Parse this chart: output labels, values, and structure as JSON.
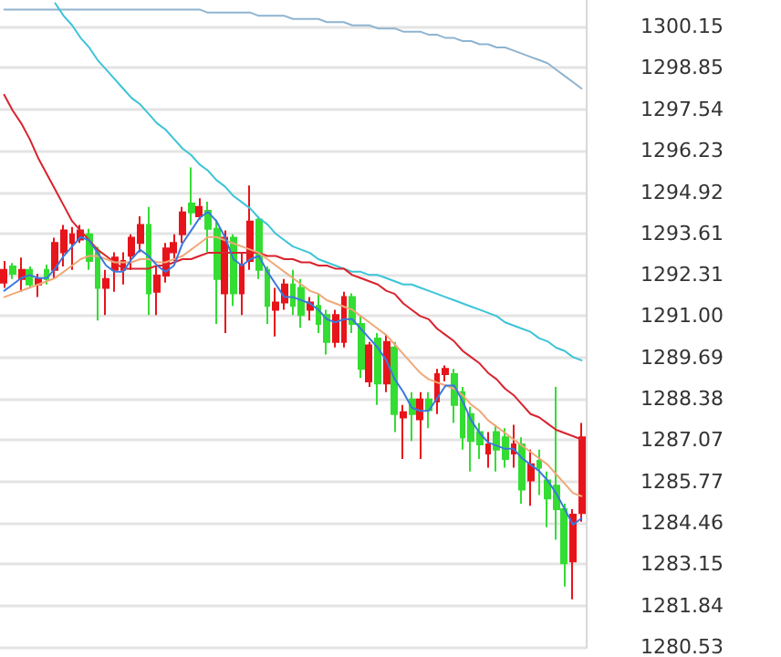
{
  "chart_data": {
    "type": "candlestick",
    "categories": [
      null,
      null,
      null,
      null,
      null,
      null,
      null,
      null,
      null,
      null,
      null,
      null,
      null,
      null,
      null,
      null,
      null,
      null,
      null,
      null,
      null,
      null,
      null,
      null,
      null,
      null,
      null,
      null,
      null,
      null,
      null,
      null,
      null,
      null,
      null,
      null,
      null,
      null,
      null,
      null,
      null,
      null,
      null,
      null,
      null,
      null,
      null,
      null,
      null,
      null,
      null,
      null,
      null,
      null,
      null,
      null,
      null,
      null,
      null,
      null,
      null,
      null,
      null,
      null,
      null,
      null,
      null,
      null,
      null
    ],
    "ohlc": [
      [
        1292.06,
        1292.74,
        1291.89,
        1292.46
      ],
      [
        1292.57,
        1292.68,
        1292.17,
        1292.34
      ],
      [
        1292.17,
        1292.85,
        1291.77,
        1292.46
      ],
      [
        1292.46,
        1292.57,
        1291.89,
        1292.0
      ],
      [
        1292.0,
        1292.34,
        1291.6,
        1292.17
      ],
      [
        1292.46,
        1292.63,
        1292.0,
        1292.17
      ],
      [
        1292.46,
        1293.48,
        1292.17,
        1293.31
      ],
      [
        1293.02,
        1293.88,
        1292.57,
        1293.71
      ],
      [
        1293.31,
        1293.82,
        1292.46,
        1293.59
      ],
      [
        1293.42,
        1293.88,
        1293.31,
        1293.71
      ],
      [
        1293.59,
        1293.76,
        1292.46,
        1292.74
      ],
      [
        1293.02,
        1293.19,
        1290.86,
        1291.89
      ],
      [
        1291.89,
        1292.46,
        1291.03,
        1292.17
      ],
      [
        1292.46,
        1293.02,
        1291.77,
        1292.85
      ],
      [
        1292.46,
        1293.02,
        1292.0,
        1292.74
      ],
      [
        1292.91,
        1293.59,
        1292.46,
        1293.48
      ],
      [
        1293.31,
        1294.16,
        1293.02,
        1293.88
      ],
      [
        1293.88,
        1294.45,
        1291.03,
        1291.72
      ],
      [
        1291.77,
        1292.57,
        1291.03,
        1292.28
      ],
      [
        1292.28,
        1293.31,
        1292.06,
        1293.14
      ],
      [
        1293.02,
        1293.59,
        1292.74,
        1293.31
      ],
      [
        1293.59,
        1294.45,
        1293.31,
        1294.28
      ],
      [
        1294.56,
        1295.7,
        1293.88,
        1294.28
      ],
      [
        1294.16,
        1294.73,
        1294.05,
        1294.45
      ],
      [
        1294.33,
        1294.62,
        1293.02,
        1293.76
      ],
      [
        1293.76,
        1294.05,
        1290.75,
        1292.17
      ],
      [
        1291.72,
        1293.71,
        1290.46,
        1293.48
      ],
      [
        1293.48,
        1293.59,
        1291.32,
        1291.72
      ],
      [
        1291.72,
        1293.02,
        1291.03,
        1292.63
      ],
      [
        1292.74,
        1295.13,
        1292.46,
        1293.99
      ],
      [
        1294.05,
        1294.16,
        1292.17,
        1292.46
      ],
      [
        1292.46,
        1292.57,
        1290.75,
        1291.32
      ],
      [
        1291.2,
        1291.89,
        1290.35,
        1291.43
      ],
      [
        1291.43,
        1292.17,
        1291.2,
        1292.0
      ],
      [
        1292.0,
        1292.46,
        1291.03,
        1291.32
      ],
      [
        1291.89,
        1292.17,
        1290.63,
        1291.03
      ],
      [
        1291.2,
        1291.6,
        1290.86,
        1291.43
      ],
      [
        1291.32,
        1291.72,
        1290.46,
        1290.75
      ],
      [
        1291.03,
        1291.2,
        1289.78,
        1290.18
      ],
      [
        1290.18,
        1291.2,
        1290.01,
        1291.03
      ],
      [
        1290.18,
        1291.77,
        1290.01,
        1291.6
      ],
      [
        1291.6,
        1291.72,
        1290.46,
        1290.75
      ],
      [
        1290.75,
        1291.03,
        1289.04,
        1289.33
      ],
      [
        1288.93,
        1290.18,
        1288.76,
        1290.07
      ],
      [
        1290.29,
        1290.46,
        1288.19,
        1288.87
      ],
      [
        1288.87,
        1290.41,
        1288.59,
        1290.18
      ],
      [
        1290.01,
        1290.18,
        1287.33,
        1287.9
      ],
      [
        1287.79,
        1288.19,
        1286.48,
        1287.96
      ],
      [
        1288.36,
        1288.59,
        1287.05,
        1287.9
      ],
      [
        1287.73,
        1288.59,
        1286.48,
        1288.36
      ],
      [
        1288.36,
        1288.59,
        1287.45,
        1288.02
      ],
      [
        1288.3,
        1289.33,
        1287.9,
        1289.16
      ],
      [
        1289.16,
        1289.44,
        1288.93,
        1289.33
      ],
      [
        1289.16,
        1289.33,
        1287.62,
        1288.19
      ],
      [
        1288.59,
        1288.76,
        1286.77,
        1287.16
      ],
      [
        1287.9,
        1288.13,
        1286.08,
        1287.05
      ],
      [
        1287.33,
        1287.62,
        1286.48,
        1286.94
      ],
      [
        1286.65,
        1287.33,
        1286.2,
        1286.94
      ],
      [
        1287.33,
        1287.56,
        1286.08,
        1286.77
      ],
      [
        1287.16,
        1287.45,
        1286.2,
        1286.48
      ],
      [
        1286.65,
        1287.56,
        1286.2,
        1286.94
      ],
      [
        1286.94,
        1287.16,
        1285.06,
        1285.51
      ],
      [
        1285.8,
        1286.77,
        1285.0,
        1286.31
      ],
      [
        1286.42,
        1286.77,
        1285.34,
        1286.2
      ],
      [
        1285.8,
        1286.08,
        1284.32,
        1285.23
      ],
      [
        1285.63,
        1288.76,
        1283.92,
        1284.89
      ],
      [
        1284.89,
        1285.06,
        1282.44,
        1283.18
      ],
      [
        1283.24,
        1284.89,
        1282.04,
        1284.72
      ],
      [
        1284.77,
        1287.62,
        1284.49,
        1287.16
      ]
    ],
    "colors": [
      "#e8141b",
      "#33dd33",
      "#e8141b",
      "#33dd33",
      "#e8141b",
      "#33dd33",
      "#e8141b",
      "#e8141b",
      "#e8141b",
      "#e8141b",
      "#33dd33",
      "#33dd33",
      "#e8141b",
      "#e8141b",
      "#e8141b",
      "#e8141b",
      "#e8141b",
      "#33dd33",
      "#e8141b",
      "#e8141b",
      "#e8141b",
      "#e8141b",
      "#33dd33",
      "#e8141b",
      "#33dd33",
      "#33dd33",
      "#e8141b",
      "#33dd33",
      "#e8141b",
      "#e8141b",
      "#33dd33",
      "#33dd33",
      "#e8141b",
      "#e8141b",
      "#33dd33",
      "#33dd33",
      "#e8141b",
      "#33dd33",
      "#33dd33",
      "#e8141b",
      "#e8141b",
      "#33dd33",
      "#33dd33",
      "#e8141b",
      "#33dd33",
      "#e8141b",
      "#33dd33",
      "#e8141b",
      "#33dd33",
      "#e8141b",
      "#33dd33",
      "#e8141b",
      "#e8141b",
      "#33dd33",
      "#33dd33",
      "#33dd33",
      "#33dd33",
      "#e8141b",
      "#33dd33",
      "#33dd33",
      "#e8141b",
      "#33dd33",
      "#e8141b",
      "#33dd33",
      "#33dd33",
      "#33dd33",
      "#33dd33",
      "#e8141b",
      "#e8141b"
    ],
    "series": [
      {
        "type": "line",
        "color": "#8fb4d0",
        "values": [
          1300.7,
          1300.7,
          1300.7,
          1300.7,
          1300.7,
          1300.7,
          1300.7,
          1300.7,
          1300.7,
          1300.7,
          1300.7,
          1300.7,
          1300.7,
          1300.7,
          1300.7,
          1300.7,
          1300.7,
          1300.7,
          1300.7,
          1300.7,
          1300.7,
          1300.7,
          1300.7,
          1300.7,
          1300.6,
          1300.6,
          1300.6,
          1300.6,
          1300.6,
          1300.6,
          1300.5,
          1300.5,
          1300.5,
          1300.5,
          1300.4,
          1300.4,
          1300.4,
          1300.4,
          1300.3,
          1300.3,
          1300.3,
          1300.2,
          1300.2,
          1300.2,
          1300.1,
          1300.1,
          1300.1,
          1300.0,
          1300.0,
          1300.0,
          1299.9,
          1299.9,
          1299.8,
          1299.8,
          1299.7,
          1299.7,
          1299.6,
          1299.6,
          1299.5,
          1299.5,
          1299.4,
          1299.3,
          1299.2,
          1299.1,
          1299.0,
          1298.8,
          1298.6,
          1298.4,
          1298.2
        ]
      },
      {
        "type": "line",
        "color": "#3cc4d8",
        "values": [
          null,
          null,
          null,
          null,
          null,
          null,
          1300.9,
          1300.5,
          1300.2,
          1299.8,
          1299.5,
          1299.1,
          1298.8,
          1298.5,
          1298.2,
          1297.9,
          1297.7,
          1297.4,
          1297.1,
          1296.9,
          1296.6,
          1296.3,
          1296.1,
          1295.8,
          1295.6,
          1295.3,
          1295.1,
          1294.8,
          1294.6,
          1294.4,
          1294.1,
          1293.9,
          1293.6,
          1293.4,
          1293.2,
          1293.1,
          1293.0,
          1292.8,
          1292.7,
          1292.6,
          1292.5,
          1292.4,
          1292.4,
          1292.3,
          1292.3,
          1292.2,
          1292.1,
          1292.0,
          1292.0,
          1291.9,
          1291.8,
          1291.7,
          1291.6,
          1291.5,
          1291.4,
          1291.3,
          1291.2,
          1291.1,
          1291.0,
          1290.8,
          1290.7,
          1290.6,
          1290.5,
          1290.3,
          1290.2,
          1290.0,
          1289.9,
          1289.7,
          1289.6
        ]
      },
      {
        "type": "line",
        "color": "#d9232e",
        "values": [
          1298.0,
          1297.5,
          1297.1,
          1296.6,
          1296.0,
          1295.5,
          1295.0,
          1294.5,
          1294.0,
          1293.7,
          1293.4,
          1293.1,
          1292.9,
          1292.7,
          1292.5,
          1292.5,
          1292.5,
          1292.5,
          1292.6,
          1292.6,
          1292.7,
          1292.8,
          1292.8,
          1292.9,
          1293.0,
          1293.0,
          1293.0,
          1293.0,
          1293.0,
          1293.0,
          1293.0,
          1292.9,
          1292.9,
          1292.8,
          1292.8,
          1292.7,
          1292.7,
          1292.6,
          1292.6,
          1292.5,
          1292.5,
          1292.3,
          1292.2,
          1292.1,
          1292.0,
          1291.8,
          1291.7,
          1291.4,
          1291.2,
          1291.0,
          1290.9,
          1290.6,
          1290.4,
          1290.2,
          1289.9,
          1289.7,
          1289.5,
          1289.2,
          1289.0,
          1288.7,
          1288.5,
          1288.2,
          1287.9,
          1287.8,
          1287.6,
          1287.4,
          1287.3,
          1287.2,
          1287.1
        ]
      },
      {
        "type": "line",
        "color": "#f0a878",
        "values": [
          1291.6,
          1291.7,
          1291.8,
          1291.9,
          1292.0,
          1292.1,
          1292.2,
          1292.4,
          1292.6,
          1292.8,
          1292.9,
          1292.9,
          1292.8,
          1292.7,
          1292.7,
          1292.7,
          1292.8,
          1292.8,
          1292.7,
          1292.7,
          1292.8,
          1292.9,
          1293.1,
          1293.3,
          1293.5,
          1293.5,
          1293.4,
          1293.3,
          1293.2,
          1293.1,
          1293.0,
          1292.8,
          1292.6,
          1292.4,
          1292.2,
          1292.0,
          1291.8,
          1291.7,
          1291.5,
          1291.4,
          1291.3,
          1291.2,
          1291.0,
          1290.8,
          1290.6,
          1290.4,
          1290.1,
          1289.8,
          1289.5,
          1289.2,
          1289.0,
          1288.9,
          1288.8,
          1288.7,
          1288.5,
          1288.2,
          1288.0,
          1287.7,
          1287.5,
          1287.3,
          1287.1,
          1286.9,
          1286.7,
          1286.5,
          1286.3,
          1286.0,
          1285.7,
          1285.4,
          1285.3
        ]
      },
      {
        "type": "line",
        "color": "#3a78e0",
        "values": [
          1291.8,
          1292.0,
          1292.2,
          1292.3,
          1292.2,
          1292.2,
          1292.5,
          1292.9,
          1293.2,
          1293.5,
          1293.4,
          1293.0,
          1292.6,
          1292.4,
          1292.4,
          1292.8,
          1293.1,
          1292.9,
          1292.6,
          1292.4,
          1292.6,
          1293.3,
          1293.7,
          1294.1,
          1294.3,
          1294.0,
          1293.5,
          1292.8,
          1292.6,
          1292.8,
          1292.9,
          1292.4,
          1292.0,
          1291.6,
          1291.6,
          1291.5,
          1291.4,
          1291.2,
          1290.9,
          1290.8,
          1290.9,
          1290.9,
          1290.6,
          1290.3,
          1290.0,
          1289.6,
          1289.0,
          1288.6,
          1288.1,
          1288.0,
          1288.0,
          1288.4,
          1288.8,
          1288.8,
          1288.3,
          1287.7,
          1287.3,
          1287.0,
          1286.9,
          1286.8,
          1286.8,
          1286.5,
          1286.3,
          1286.1,
          1285.8,
          1285.4,
          1284.9,
          1284.4,
          1284.6
        ]
      }
    ],
    "ylim": [
      1280.5,
      1301.0
    ],
    "yticks": [
      1300.15,
      1298.85,
      1297.54,
      1296.23,
      1294.92,
      1293.61,
      1292.31,
      {
        "value": 1291,
        "label": "1291.00"
      },
      1289.69,
      1288.38,
      1287.07,
      1285.77,
      1284.46,
      1283.15,
      1281.84,
      1280.53
    ],
    "grid": "y",
    "tick_labels": "y"
  }
}
